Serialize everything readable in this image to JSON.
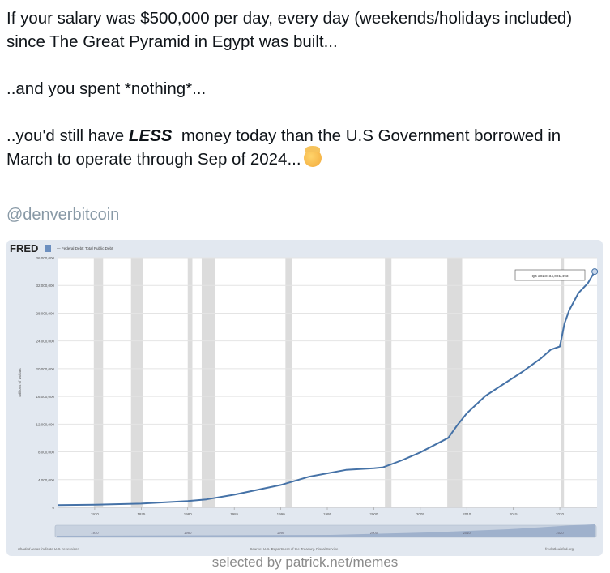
{
  "tweet": {
    "line1": "If your salary was $500,000 per day, every day (weekends/holidays included) since The Great Pyramid in Egypt was built...",
    "line2": "..and you spent *nothing*...",
    "line3_pre": "..you'd still have ",
    "line3_bold": "LESS",
    "line3_post": "  money today than the U.S Government borrowed in March to operate through Sep of 2024...",
    "emoji": "exploding-head-with-crown-emoji",
    "handle": "@denverbitcoin"
  },
  "footer": "selected by patrick.net/memes",
  "chart_data": {
    "type": "line",
    "brand": "FRED",
    "title": "",
    "xlabel": "",
    "ylabel": "Millions of Dollars",
    "legend": "— Federal Debt: Total Public Debt",
    "series": [
      {
        "name": "Federal Debt: Total Public Debt",
        "color": "#4572a7",
        "x": [
          1966,
          1970,
          1975,
          1980,
          1982,
          1985,
          1990,
          1993,
          1997,
          2000,
          2001,
          2003,
          2005,
          2008,
          2009,
          2010,
          2012,
          2014,
          2016,
          2018,
          2019,
          2020,
          2020.5,
          2021,
          2022,
          2023,
          2023.75
        ],
        "y": [
          320000,
          370000,
          540000,
          900000,
          1140000,
          1820000,
          3230000,
          4410000,
          5400000,
          5630000,
          5770000,
          6780000,
          7930000,
          10020000,
          11900000,
          13560000,
          16070000,
          17820000,
          19570000,
          21520000,
          22720000,
          23200000,
          26500000,
          28400000,
          30900000,
          32300000,
          34001493
        ]
      }
    ],
    "yticks": [
      "0",
      "4,000,000",
      "8,000,000",
      "12,000,000",
      "16,000,000",
      "20,000,000",
      "24,000,000",
      "28,000,000",
      "32,000,000",
      "36,000,000"
    ],
    "ytick_values": [
      0,
      4000000,
      8000000,
      12000000,
      16000000,
      20000000,
      24000000,
      28000000,
      32000000,
      36000000
    ],
    "xticks": [
      "1970",
      "1975",
      "1980",
      "1985",
      "1990",
      "1995",
      "2000",
      "2005",
      "2010",
      "2015",
      "2020"
    ],
    "xtick_values": [
      1970,
      1975,
      1980,
      1985,
      1990,
      1995,
      2000,
      2005,
      2010,
      2015,
      2020
    ],
    "xlim": [
      1966,
      2024
    ],
    "ylim": [
      0,
      36000000
    ],
    "recessions": [
      [
        1969.9,
        1970.9
      ],
      [
        1973.9,
        1975.2
      ],
      [
        1980.0,
        1980.5
      ],
      [
        1981.5,
        1982.9
      ],
      [
        1990.5,
        1991.2
      ],
      [
        2001.2,
        2001.9
      ],
      [
        2007.9,
        2009.5
      ],
      [
        2020.1,
        2020.4
      ]
    ],
    "tooltip": "Q4 2023: 34,001,493",
    "range_labels": [
      "1970",
      "1980",
      "1990",
      "2000",
      "2010",
      "2020"
    ],
    "note_recession": "Shaded areas indicate U.S. recessions",
    "source": "Source: U.S. Department of the Treasury. Fiscal Service",
    "site": "fred.stlouisfed.org",
    "colors": {
      "line": "#4572a7",
      "recession": "#dcdcdc",
      "grid": "#e4e4e4",
      "panel": "#e2e8f0"
    }
  }
}
